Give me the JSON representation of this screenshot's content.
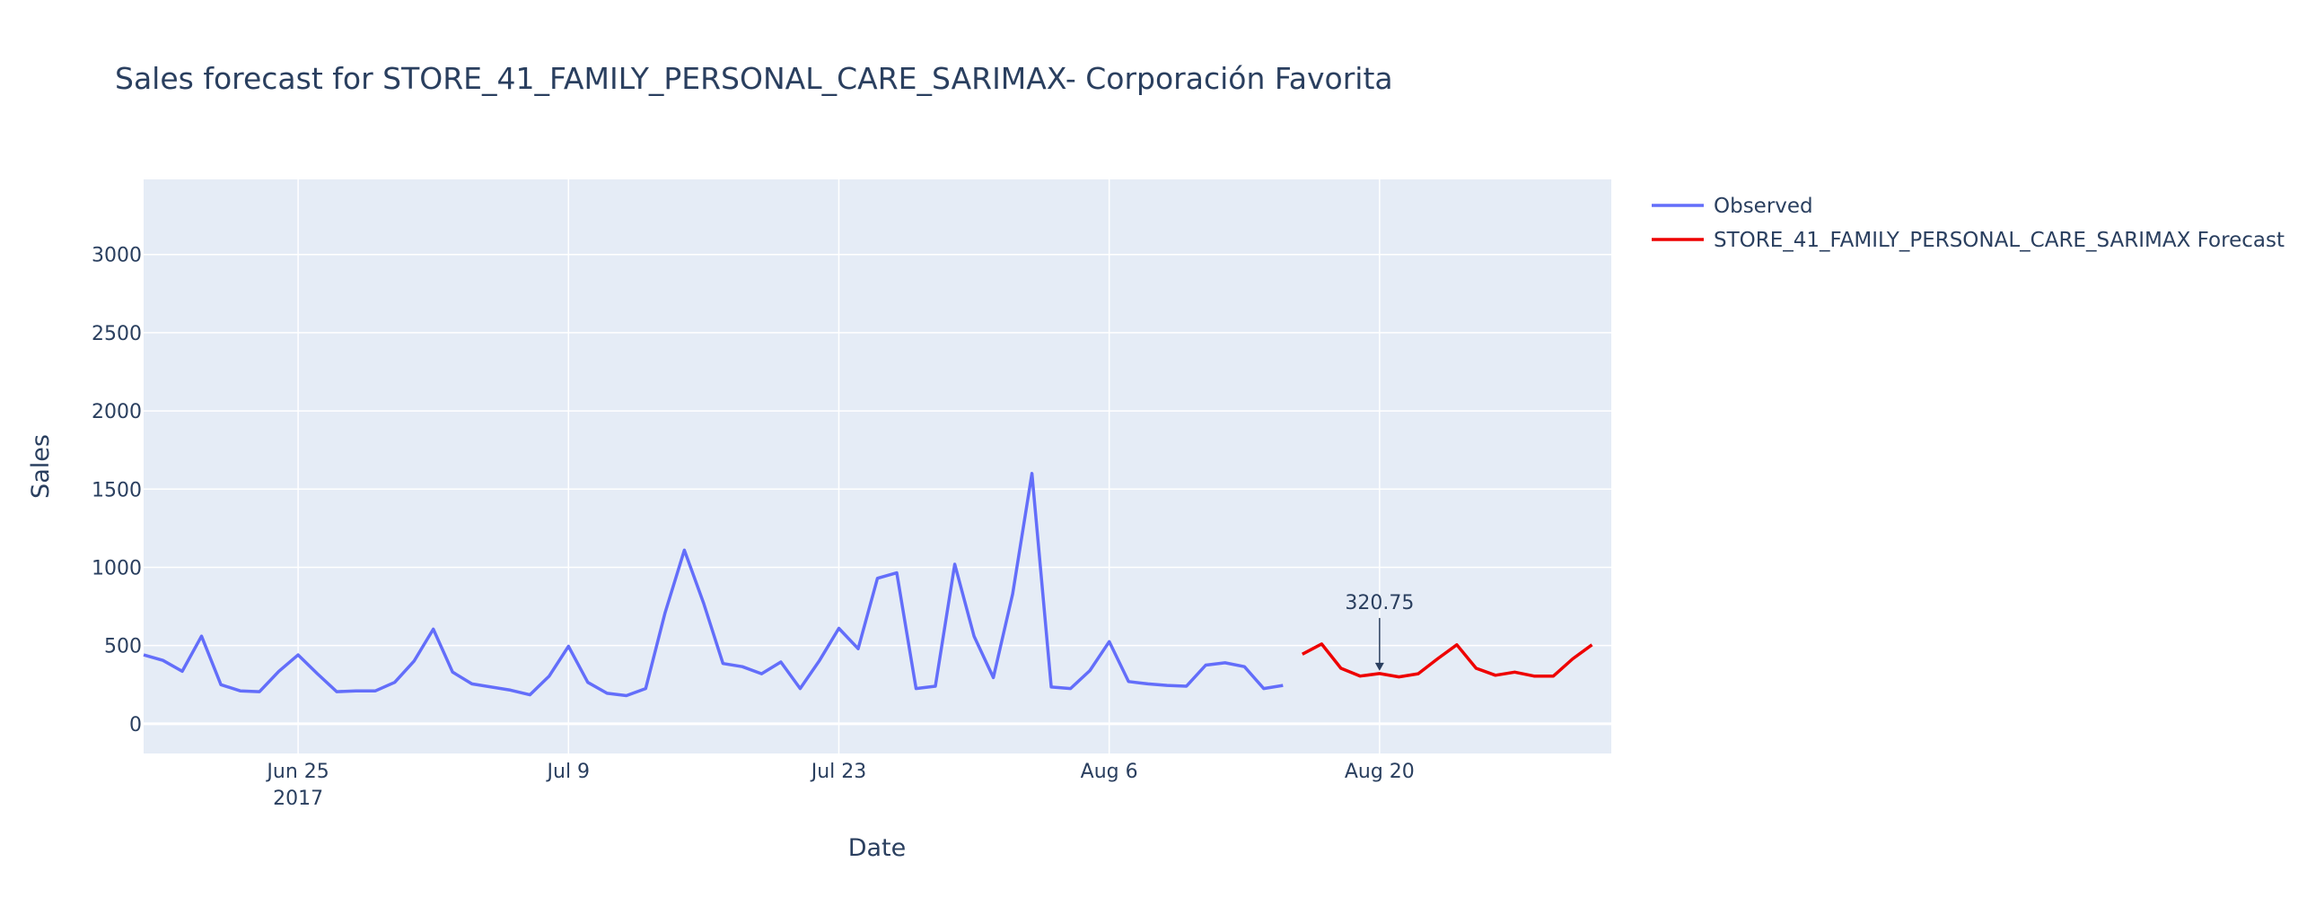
{
  "chart_data": {
    "type": "line",
    "title": "Sales forecast for STORE_41_FAMILY_PERSONAL_CARE_SARIMAX- Corporación Favorita",
    "xlabel": "Date",
    "ylabel": "Sales",
    "xlim": [
      "2017-06-17",
      "2017-09-01"
    ],
    "ylim": [
      -190,
      3480
    ],
    "x_ticks": [
      {
        "date": "2017-06-25",
        "label": "Jun 25",
        "sublabel": "2017"
      },
      {
        "date": "2017-07-09",
        "label": "Jul 9",
        "sublabel": ""
      },
      {
        "date": "2017-07-23",
        "label": "Jul 23",
        "sublabel": ""
      },
      {
        "date": "2017-08-06",
        "label": "Aug 6",
        "sublabel": ""
      },
      {
        "date": "2017-08-20",
        "label": "Aug 20",
        "sublabel": ""
      }
    ],
    "y_ticks": [
      0,
      500,
      1000,
      1500,
      2000,
      2500,
      3000
    ],
    "grid": true,
    "legend_position": "top-right",
    "series": [
      {
        "name": "Observed",
        "color": "#636efa",
        "points": [
          [
            "2017-06-17",
            440
          ],
          [
            "2017-06-18",
            405
          ],
          [
            "2017-06-19",
            335
          ],
          [
            "2017-06-20",
            560
          ],
          [
            "2017-06-21",
            250
          ],
          [
            "2017-06-22",
            210
          ],
          [
            "2017-06-23",
            205
          ],
          [
            "2017-06-24",
            335
          ],
          [
            "2017-06-25",
            440
          ],
          [
            "2017-06-26",
            320
          ],
          [
            "2017-06-27",
            205
          ],
          [
            "2017-06-28",
            210
          ],
          [
            "2017-06-29",
            210
          ],
          [
            "2017-06-30",
            265
          ],
          [
            "2017-07-01",
            400
          ],
          [
            "2017-07-02",
            605
          ],
          [
            "2017-07-03",
            330
          ],
          [
            "2017-07-04",
            255
          ],
          [
            "2017-07-06",
            215
          ],
          [
            "2017-07-07",
            185
          ],
          [
            "2017-07-08",
            305
          ],
          [
            "2017-07-09",
            495
          ],
          [
            "2017-07-10",
            265
          ],
          [
            "2017-07-11",
            195
          ],
          [
            "2017-07-12",
            180
          ],
          [
            "2017-07-13",
            225
          ],
          [
            "2017-07-14",
            710
          ],
          [
            "2017-07-15",
            1110
          ],
          [
            "2017-07-16",
            770
          ],
          [
            "2017-07-17",
            385
          ],
          [
            "2017-07-18",
            365
          ],
          [
            "2017-07-19",
            320
          ],
          [
            "2017-07-20",
            395
          ],
          [
            "2017-07-21",
            225
          ],
          [
            "2017-07-22",
            405
          ],
          [
            "2017-07-23",
            610
          ],
          [
            "2017-07-24",
            480
          ],
          [
            "2017-07-25",
            930
          ],
          [
            "2017-07-26",
            965
          ],
          [
            "2017-07-27",
            225
          ],
          [
            "2017-07-28",
            240
          ],
          [
            "2017-07-29",
            1020
          ],
          [
            "2017-07-30",
            560
          ],
          [
            "2017-07-31",
            295
          ],
          [
            "2017-08-01",
            830
          ],
          [
            "2017-08-02",
            1600
          ],
          [
            "2017-08-03",
            235
          ],
          [
            "2017-08-04",
            225
          ],
          [
            "2017-08-05",
            340
          ],
          [
            "2017-08-06",
            525
          ],
          [
            "2017-08-07",
            270
          ],
          [
            "2017-08-08",
            255
          ],
          [
            "2017-08-09",
            245
          ],
          [
            "2017-08-10",
            240
          ],
          [
            "2017-08-11",
            375
          ],
          [
            "2017-08-12",
            390
          ],
          [
            "2017-08-13",
            365
          ],
          [
            "2017-08-14",
            225
          ],
          [
            "2017-08-15",
            245
          ]
        ]
      },
      {
        "name": "STORE_41_FAMILY_PERSONAL_CARE_SARIMAX Forecast",
        "color": "#ee0000",
        "points": [
          [
            "2017-08-16",
            445
          ],
          [
            "2017-08-17",
            510
          ],
          [
            "2017-08-18",
            355
          ],
          [
            "2017-08-19",
            305
          ],
          [
            "2017-08-20",
            320.75
          ],
          [
            "2017-08-21",
            300
          ],
          [
            "2017-08-22",
            320
          ],
          [
            "2017-08-23",
            415
          ],
          [
            "2017-08-24",
            505
          ],
          [
            "2017-08-25",
            355
          ],
          [
            "2017-08-26",
            310
          ],
          [
            "2017-08-27",
            330
          ],
          [
            "2017-08-28",
            305
          ],
          [
            "2017-08-29",
            305
          ],
          [
            "2017-08-30",
            415
          ],
          [
            "2017-08-31",
            505
          ]
        ]
      }
    ],
    "annotations": [
      {
        "date": "2017-08-20",
        "value": 320.75,
        "text": "320.75"
      }
    ]
  },
  "colors": {
    "plot_background": "#e5ecf6",
    "grid": "#ffffff",
    "text": "#2a3f5f",
    "annotation_arrow": "#2a3f5f"
  }
}
